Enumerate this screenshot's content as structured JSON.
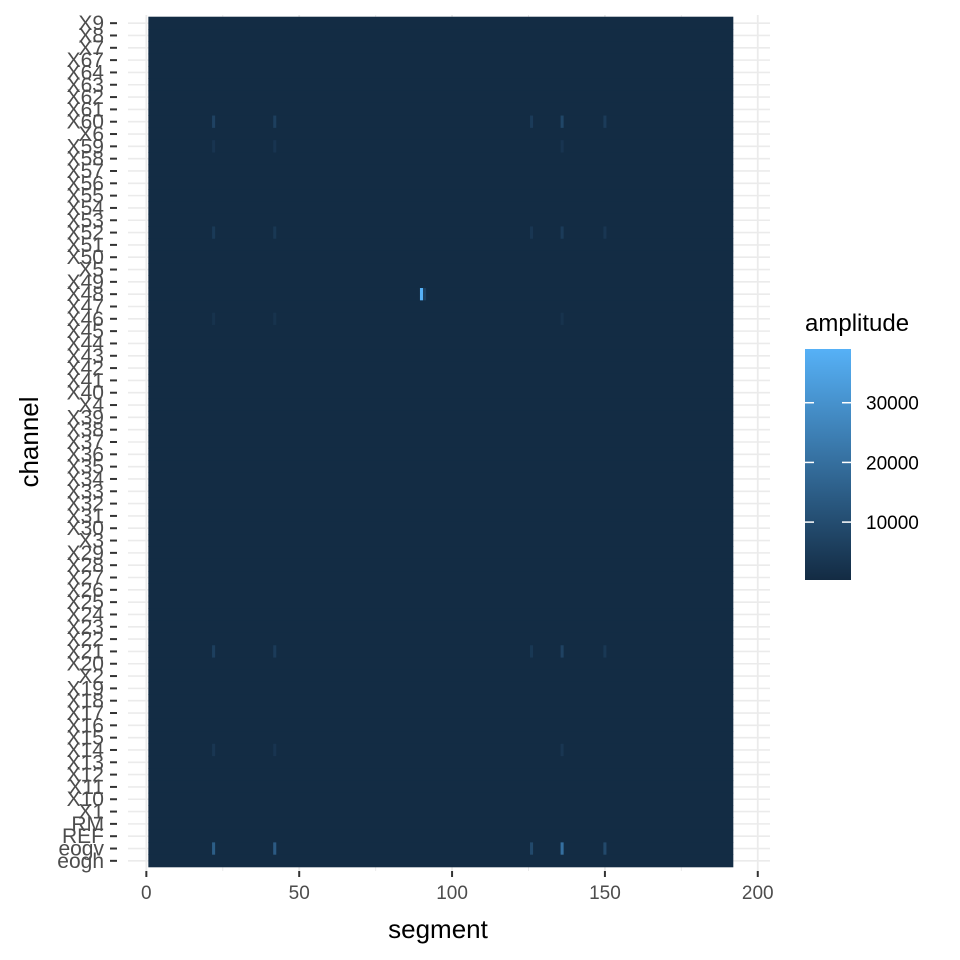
{
  "chart_data": {
    "type": "heatmap",
    "xlabel": "segment",
    "ylabel": "channel",
    "x_range": [
      0,
      192
    ],
    "xlim": [
      0,
      200
    ],
    "x_ticks": [
      0,
      50,
      100,
      150,
      200
    ],
    "y_categories_top_to_bottom": [
      "X9",
      "X8",
      "X7",
      "X67",
      "X64",
      "X63",
      "X62",
      "X61",
      "X60",
      "X6",
      "X59",
      "X58",
      "X57",
      "X56",
      "X55",
      "X54",
      "X53",
      "X52",
      "X51",
      "X50",
      "X5",
      "X49",
      "X48",
      "X47",
      "X46",
      "X45",
      "X44",
      "X43",
      "X42",
      "X41",
      "X40",
      "X4",
      "X39",
      "X38",
      "X37",
      "X36",
      "X35",
      "X34",
      "X33",
      "X32",
      "X31",
      "X30",
      "X3",
      "X29",
      "X28",
      "X27",
      "X26",
      "X25",
      "X24",
      "X23",
      "X22",
      "X21",
      "X20",
      "X2",
      "X19",
      "X18",
      "X17",
      "X16",
      "X15",
      "X14",
      "X13",
      "X12",
      "X11",
      "X10",
      "X1",
      "RM",
      "REF",
      "eogv",
      "eogh"
    ],
    "background_amplitude": 500,
    "hotspots": [
      {
        "channel": "eogv",
        "segment": 22,
        "amplitude": 15000
      },
      {
        "channel": "eogv",
        "segment": 42,
        "amplitude": 14000
      },
      {
        "channel": "eogv",
        "segment": 126,
        "amplitude": 9000
      },
      {
        "channel": "eogv",
        "segment": 136,
        "amplitude": 20000
      },
      {
        "channel": "eogv",
        "segment": 150,
        "amplitude": 9000
      },
      {
        "channel": "X60",
        "segment": 22,
        "amplitude": 7000
      },
      {
        "channel": "X60",
        "segment": 42,
        "amplitude": 6000
      },
      {
        "channel": "X60",
        "segment": 126,
        "amplitude": 5000
      },
      {
        "channel": "X60",
        "segment": 136,
        "amplitude": 8000
      },
      {
        "channel": "X60",
        "segment": 150,
        "amplitude": 5000
      },
      {
        "channel": "X21",
        "segment": 22,
        "amplitude": 6000
      },
      {
        "channel": "X21",
        "segment": 42,
        "amplitude": 5000
      },
      {
        "channel": "X21",
        "segment": 126,
        "amplitude": 4000
      },
      {
        "channel": "X21",
        "segment": 136,
        "amplitude": 7000
      },
      {
        "channel": "X21",
        "segment": 150,
        "amplitude": 4000
      },
      {
        "channel": "X52",
        "segment": 22,
        "amplitude": 4500
      },
      {
        "channel": "X52",
        "segment": 42,
        "amplitude": 4000
      },
      {
        "channel": "X52",
        "segment": 126,
        "amplitude": 3500
      },
      {
        "channel": "X52",
        "segment": 136,
        "amplitude": 5000
      },
      {
        "channel": "X52",
        "segment": 150,
        "amplitude": 3500
      },
      {
        "channel": "X48",
        "segment": 90,
        "amplitude": 39000
      },
      {
        "channel": "X48",
        "segment": 91,
        "amplitude": 6000
      },
      {
        "channel": "X14",
        "segment": 22,
        "amplitude": 3500
      },
      {
        "channel": "X14",
        "segment": 42,
        "amplitude": 3000
      },
      {
        "channel": "X14",
        "segment": 136,
        "amplitude": 3500
      },
      {
        "channel": "X59",
        "segment": 22,
        "amplitude": 3000
      },
      {
        "channel": "X59",
        "segment": 42,
        "amplitude": 3000
      },
      {
        "channel": "X59",
        "segment": 136,
        "amplitude": 3000
      },
      {
        "channel": "X46",
        "segment": 22,
        "amplitude": 2500
      },
      {
        "channel": "X46",
        "segment": 42,
        "amplitude": 2500
      },
      {
        "channel": "X46",
        "segment": 136,
        "amplitude": 2500
      }
    ],
    "legend": {
      "title": "amplitude",
      "position": "right",
      "breaks": [
        10000,
        20000,
        30000
      ],
      "labels": [
        "10000",
        "20000",
        "30000"
      ],
      "min": 300,
      "max": 39000,
      "color_low": "#132B43",
      "color_high": "#56B1F7"
    },
    "grid": true
  }
}
